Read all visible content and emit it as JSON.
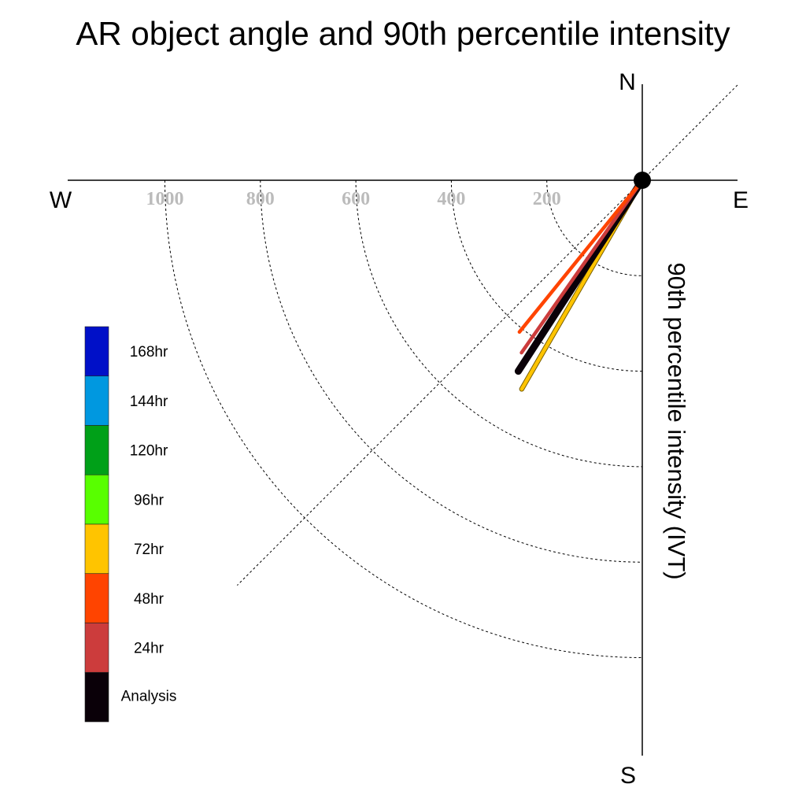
{
  "chart_data": {
    "type": "polar-vector",
    "title": "AR object angle and 90th percentile intensity",
    "ylabel": "90th percentile intensity (IVT)",
    "compass": {
      "north": "N",
      "south": "S",
      "east": "E",
      "west": "W"
    },
    "radial_ticks": [
      "200",
      "400",
      "600",
      "800",
      "1000"
    ],
    "radial_rings": [
      200,
      400,
      600,
      800,
      1000
    ],
    "rmax": 1200,
    "grid": true,
    "legend_placement": "left",
    "legend": [
      {
        "label": "168hr",
        "color": "#0010c8"
      },
      {
        "label": "144hr",
        "color": "#0098e0"
      },
      {
        "label": "120hr",
        "color": "#00a018"
      },
      {
        "label": "96hr",
        "color": "#58ff00"
      },
      {
        "label": "72hr",
        "color": "#ffc400"
      },
      {
        "label": "48hr",
        "color": "#ff4400"
      },
      {
        "label": "24hr",
        "color": "#cc3c3c"
      },
      {
        "label": "Analysis",
        "color": "#0a0008"
      }
    ],
    "series": [
      {
        "name": "72hr",
        "color": "#ffc400",
        "outline": true,
        "angle_deg": 210.0,
        "intensity": 505
      },
      {
        "name": "Analysis",
        "color": "#0a0008",
        "outline": false,
        "angle_deg": 213.0,
        "intensity": 477
      },
      {
        "name": "24hr",
        "color": "#cc3c3c",
        "outline": false,
        "angle_deg": 215.0,
        "intensity": 441
      },
      {
        "name": "48hr",
        "color": "#ff4400",
        "outline": false,
        "angle_deg": 219.0,
        "intensity": 409
      }
    ]
  }
}
